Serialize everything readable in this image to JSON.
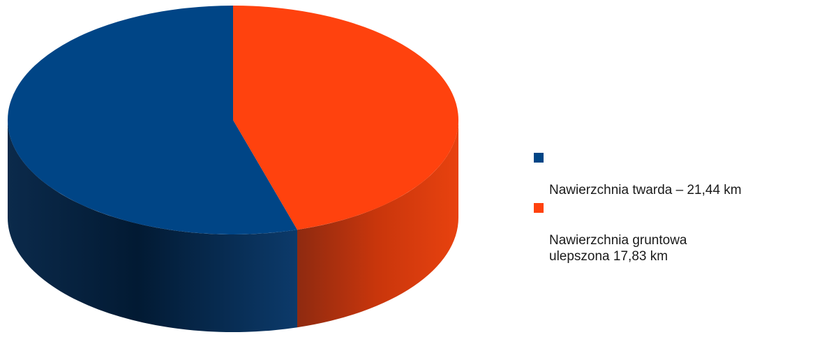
{
  "chart_data": {
    "type": "pie",
    "style": "3d",
    "legend_position": "right",
    "unit": "km",
    "slices": [
      {
        "name": "Nawierzchnia twarda",
        "value": 21.44,
        "color": "#004586",
        "legend_label": "Nawierzchnia twarda – 21,44 km"
      },
      {
        "name": "Nawierzchnia gruntowa ulepszona",
        "value": 17.83,
        "color": "#ff420e",
        "legend_label": "Nawierzchnia gruntowa\nulepszona 17,83 km"
      }
    ]
  }
}
